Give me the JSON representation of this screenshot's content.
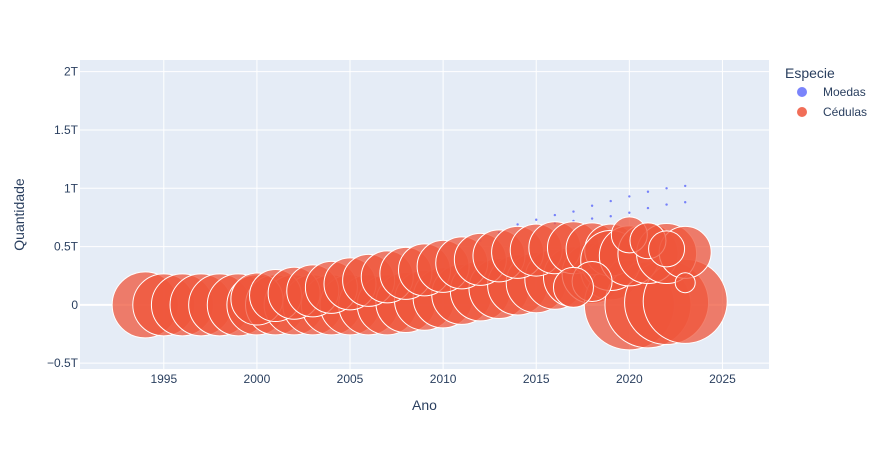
{
  "chart_data": {
    "type": "scatter",
    "xlabel": "Ano",
    "ylabel": "Quantidade",
    "xlim": [
      1990.5,
      2027.5
    ],
    "ylim": [
      -0.55,
      2.1
    ],
    "x_ticks": [
      1995,
      2000,
      2005,
      2010,
      2015,
      2020,
      2025
    ],
    "x_tick_labels": [
      "1995",
      "2000",
      "2005",
      "2010",
      "2015",
      "2020",
      "2025"
    ],
    "y_ticks": [
      -0.5,
      0,
      0.5,
      1,
      1.5,
      2
    ],
    "y_tick_labels": [
      "−0.5T",
      "0",
      "0.5T",
      "1T",
      "1.5T",
      "2T"
    ],
    "y_unit": "T",
    "grid": true,
    "legend_position": "right",
    "legend_title": "Especie",
    "colors": {
      "plot_bg": "#e5ecf6",
      "grid": "#ffffff",
      "Moedas": "#636efa",
      "Cédulas": "#ef553b"
    },
    "series": [
      {
        "name": "Moedas",
        "points": [
          {
            "x": 2012,
            "y": 0.55,
            "s": 1
          },
          {
            "x": 2013,
            "y": 0.62,
            "s": 1
          },
          {
            "x": 2014,
            "y": 0.69,
            "s": 1
          },
          {
            "x": 2015,
            "y": 0.73,
            "s": 1
          },
          {
            "x": 2016,
            "y": 0.77,
            "s": 1
          },
          {
            "x": 2017,
            "y": 0.8,
            "s": 1
          },
          {
            "x": 2018,
            "y": 0.85,
            "s": 1
          },
          {
            "x": 2019,
            "y": 0.89,
            "s": 1
          },
          {
            "x": 2020,
            "y": 0.93,
            "s": 1
          },
          {
            "x": 2021,
            "y": 0.97,
            "s": 1
          },
          {
            "x": 2022,
            "y": 1.0,
            "s": 1
          },
          {
            "x": 2023,
            "y": 1.02,
            "s": 1
          },
          {
            "x": 2016,
            "y": 0.7,
            "s": 0.5
          },
          {
            "x": 2017,
            "y": 0.72,
            "s": 0.5
          },
          {
            "x": 2018,
            "y": 0.74,
            "s": 0.5
          },
          {
            "x": 2019,
            "y": 0.76,
            "s": 0.5
          },
          {
            "x": 2020,
            "y": 0.79,
            "s": 0.5
          },
          {
            "x": 2021,
            "y": 0.83,
            "s": 0.5
          },
          {
            "x": 2022,
            "y": 0.86,
            "s": 0.5
          },
          {
            "x": 2023,
            "y": 0.88,
            "s": 0.5
          }
        ]
      },
      {
        "name": "Cédulas",
        "points": [
          {
            "x": 1994,
            "y": 0.0,
            "s": 33
          },
          {
            "x": 1995,
            "y": 0.0,
            "s": 31
          },
          {
            "x": 1996,
            "y": 0.0,
            "s": 31
          },
          {
            "x": 1997,
            "y": 0.0,
            "s": 31
          },
          {
            "x": 1998,
            "y": 0.0,
            "s": 31
          },
          {
            "x": 1999,
            "y": 0.0,
            "s": 31
          },
          {
            "x": 2000,
            "y": 0.0,
            "s": 30
          },
          {
            "x": 2001,
            "y": 0.0,
            "s": 30
          },
          {
            "x": 2002,
            "y": 0.0,
            "s": 30
          },
          {
            "x": 2003,
            "y": 0.0,
            "s": 30
          },
          {
            "x": 2004,
            "y": 0.0,
            "s": 30
          },
          {
            "x": 2005,
            "y": 0.0,
            "s": 30
          },
          {
            "x": 2006,
            "y": 0.0,
            "s": 30
          },
          {
            "x": 2007,
            "y": 0.0,
            "s": 30
          },
          {
            "x": 2008,
            "y": 0.02,
            "s": 30
          },
          {
            "x": 2009,
            "y": 0.04,
            "s": 30
          },
          {
            "x": 2010,
            "y": 0.06,
            "s": 30
          },
          {
            "x": 2011,
            "y": 0.09,
            "s": 30
          },
          {
            "x": 2012,
            "y": 0.12,
            "s": 30
          },
          {
            "x": 2013,
            "y": 0.14,
            "s": 30
          },
          {
            "x": 2014,
            "y": 0.17,
            "s": 30
          },
          {
            "x": 2015,
            "y": 0.19,
            "s": 30
          },
          {
            "x": 2016,
            "y": 0.22,
            "s": 30
          },
          {
            "x": 2017,
            "y": 0.24,
            "s": 30
          },
          {
            "x": 2018,
            "y": 0.27,
            "s": 30
          },
          {
            "x": 2019,
            "y": 0.3,
            "s": 30
          },
          {
            "x": 2020,
            "y": 0.0,
            "s": 45
          },
          {
            "x": 2021,
            "y": 0.0,
            "s": 43
          },
          {
            "x": 2022,
            "y": 0.02,
            "s": 42
          },
          {
            "x": 2023,
            "y": 0.03,
            "s": 42
          },
          {
            "x": 2000,
            "y": 0.05,
            "s": 26
          },
          {
            "x": 2001,
            "y": 0.08,
            "s": 26
          },
          {
            "x": 2002,
            "y": 0.1,
            "s": 26
          },
          {
            "x": 2003,
            "y": 0.12,
            "s": 26
          },
          {
            "x": 2004,
            "y": 0.15,
            "s": 26
          },
          {
            "x": 2005,
            "y": 0.18,
            "s": 26
          },
          {
            "x": 2006,
            "y": 0.21,
            "s": 26
          },
          {
            "x": 2007,
            "y": 0.24,
            "s": 26
          },
          {
            "x": 2008,
            "y": 0.27,
            "s": 26
          },
          {
            "x": 2009,
            "y": 0.3,
            "s": 26
          },
          {
            "x": 2010,
            "y": 0.33,
            "s": 26
          },
          {
            "x": 2011,
            "y": 0.36,
            "s": 26
          },
          {
            "x": 2012,
            "y": 0.39,
            "s": 26
          },
          {
            "x": 2013,
            "y": 0.42,
            "s": 26
          },
          {
            "x": 2014,
            "y": 0.45,
            "s": 26
          },
          {
            "x": 2015,
            "y": 0.47,
            "s": 26
          },
          {
            "x": 2016,
            "y": 0.49,
            "s": 26
          },
          {
            "x": 2017,
            "y": 0.49,
            "s": 26
          },
          {
            "x": 2018,
            "y": 0.48,
            "s": 26
          },
          {
            "x": 2019,
            "y": 0.47,
            "s": 26
          },
          {
            "x": 2019,
            "y": 0.38,
            "s": 30
          },
          {
            "x": 2020,
            "y": 0.42,
            "s": 30
          },
          {
            "x": 2021,
            "y": 0.44,
            "s": 30
          },
          {
            "x": 2022,
            "y": 0.44,
            "s": 30
          },
          {
            "x": 2023,
            "y": 0.45,
            "s": 26
          },
          {
            "x": 2020,
            "y": 0.6,
            "s": 18
          },
          {
            "x": 2021,
            "y": 0.55,
            "s": 18
          },
          {
            "x": 2022,
            "y": 0.48,
            "s": 18
          },
          {
            "x": 2023,
            "y": 0.19,
            "s": 10
          },
          {
            "x": 2018,
            "y": 0.2,
            "s": 20
          },
          {
            "x": 2017,
            "y": 0.15,
            "s": 20
          }
        ]
      }
    ]
  }
}
